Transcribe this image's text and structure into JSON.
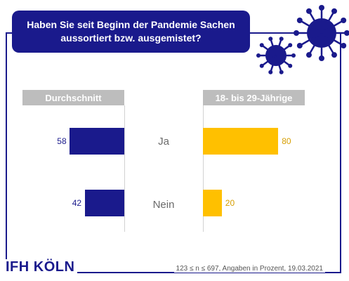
{
  "title": "Haben Sie seit Beginn der Pandemie Sachen aussortiert bzw. ausgemistet?",
  "logo": "IFH KÖLN",
  "footnote": "123 ≤ n ≤ 697, Angaben in Prozent, 19.03.2021",
  "colors": {
    "navy": "#1a1a8c",
    "gold": "#ffc000",
    "header_gray": "#bdbdbd"
  },
  "chart_data": {
    "type": "bar",
    "categories": [
      "Ja",
      "Nein"
    ],
    "series": [
      {
        "name": "Durchschnitt",
        "values": [
          58,
          42
        ]
      },
      {
        "name": "18- bis 29-Jährige",
        "values": [
          80,
          20
        ]
      }
    ],
    "xlim": [
      0,
      100
    ]
  }
}
